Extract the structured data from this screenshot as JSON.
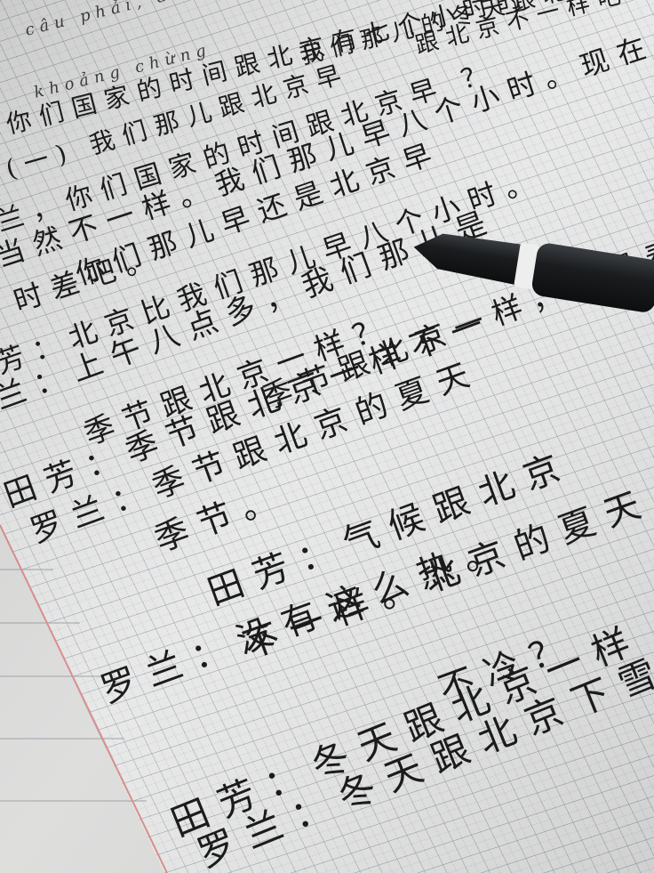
{
  "lines": [
    {
      "text": "câu phải, điều gì"
    },
    {
      "text": "khoảng chừng"
    },
    {
      "text": "我们那儿的冬天跟北京一样冷"
    },
    {
      "text": "跟北京不一样吧？"
    },
    {
      "text": "你们国家的时间跟北京有七个小时的"
    },
    {
      "text": "(一) 我们那儿跟北京早"
    },
    {
      "text": "兰，你们国家的时间跟北京早 ？"
    },
    {
      "text": "当然不一样。我们那儿早八个小时。现在"
    },
    {
      "text": "时差吧。"
    },
    {
      "text": "你们那儿早还是北京早"
    },
    {
      "text": "芳：北京比我们那儿早八个小时。"
    },
    {
      "text": "兰：上午八点多，我们那儿是"
    },
    {
      "text": "季节跟北京一样？"
    },
    {
      "text": "季节跟北京一样，也是春，夏"
    },
    {
      "text": "田芳：季节跟北京一样不一"
    },
    {
      "text": "罗兰：季节跟北京的夏天"
    },
    {
      "text": "季节。"
    },
    {
      "text": "田芳：气候跟北京"
    },
    {
      "text": "不一样。北京的夏天"
    },
    {
      "text": "罗兰：没有这么热。"
    },
    {
      "text": "不冷？"
    },
    {
      "text": "田芳：冬天跟北京一样"
    },
    {
      "text": "罗兰：冬天跟北京下雪吗？"
    }
  ]
}
